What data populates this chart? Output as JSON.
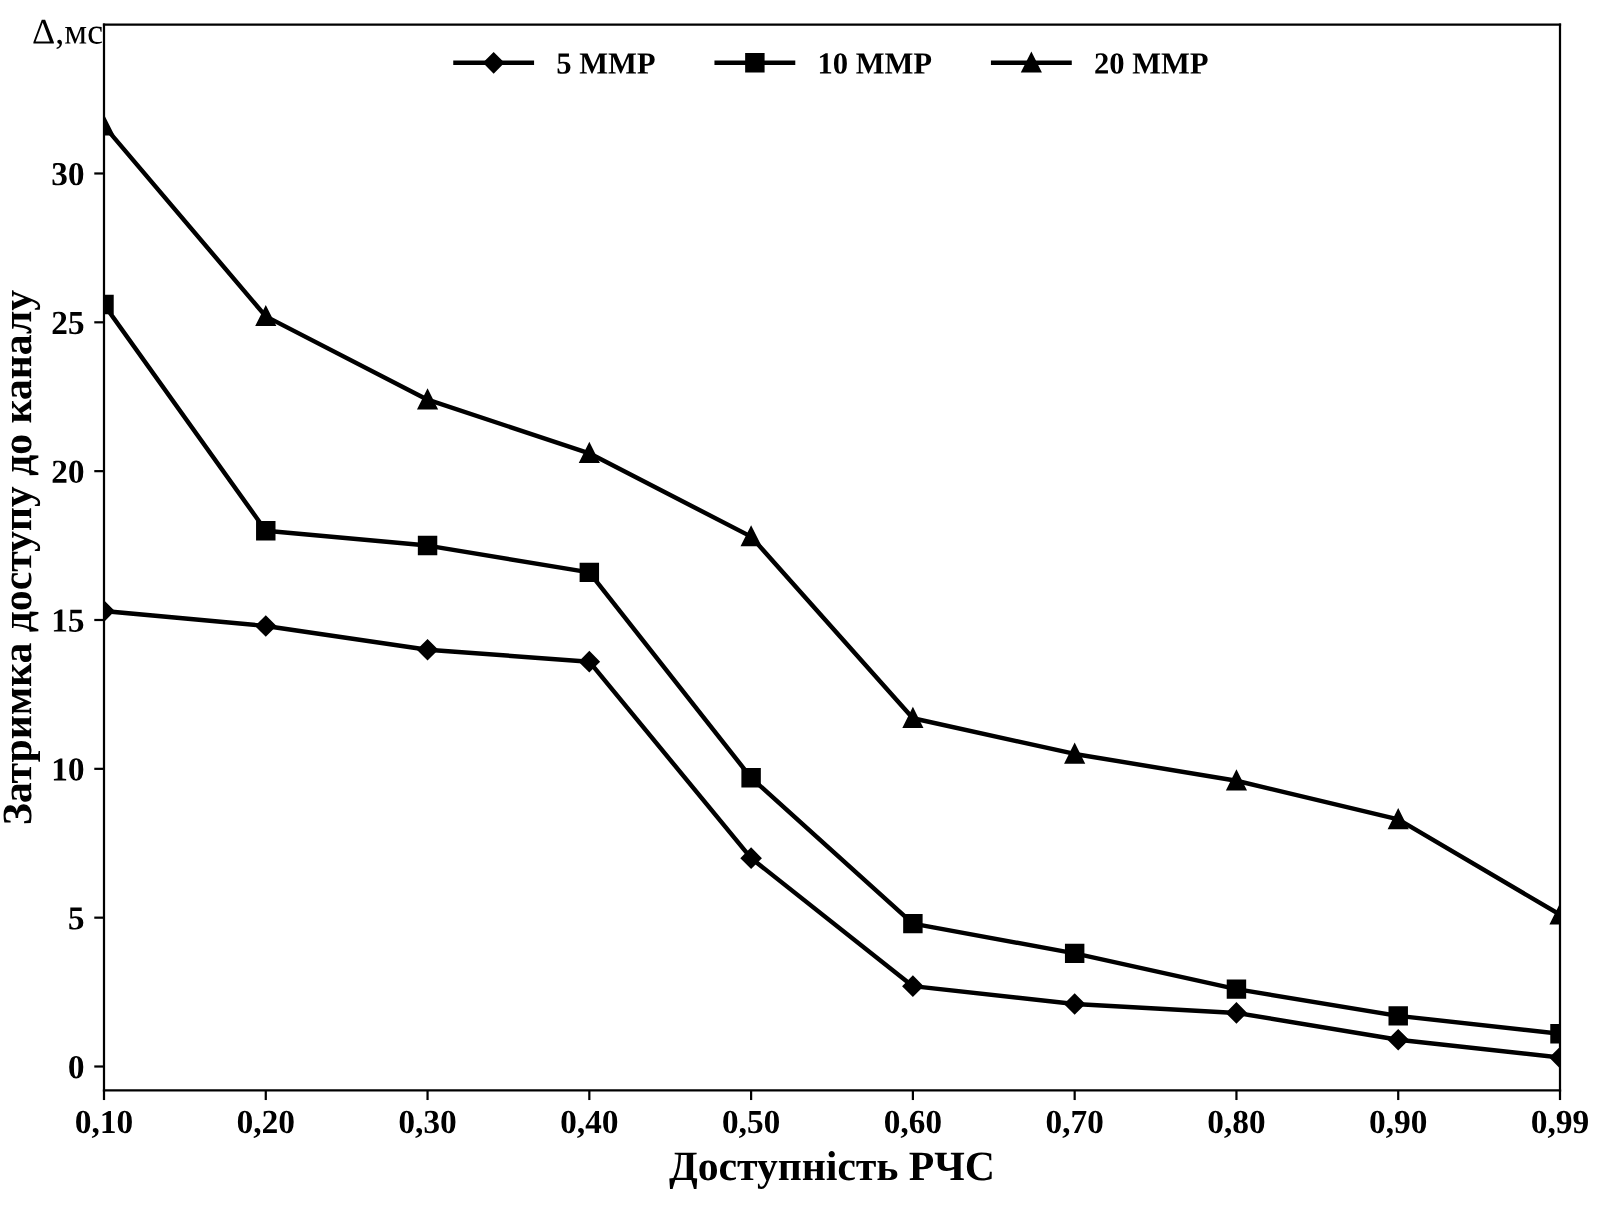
{
  "chart_data": {
    "type": "line",
    "xlabel": "Доступність РЧС",
    "ylabel": "Затримка доступу до каналу",
    "annotations": [
      "Δ,мс"
    ],
    "categories": [
      "0,10",
      "0,20",
      "0,30",
      "0,40",
      "0,50",
      "0,60",
      "0,70",
      "0,80",
      "0,90",
      "0,99"
    ],
    "series": [
      {
        "name": "5 MMP",
        "color": "#000000",
        "marker": "diamond",
        "values": [
          15.3,
          14.8,
          14.0,
          13.6,
          7.0,
          2.7,
          2.1,
          1.8,
          0.9,
          0.3
        ]
      },
      {
        "name": "10 MMP",
        "color": "#000000",
        "marker": "square",
        "values": [
          25.6,
          18.0,
          17.5,
          16.6,
          9.7,
          4.8,
          3.8,
          2.6,
          1.7,
          1.1
        ]
      },
      {
        "name": "20 MMP",
        "color": "#000000",
        "marker": "triangle",
        "values": [
          31.6,
          25.2,
          22.4,
          20.6,
          17.8,
          11.7,
          10.5,
          9.6,
          8.3,
          5.1
        ]
      }
    ],
    "ylim": [
      -0.8,
      35
    ],
    "yticks": [
      0,
      5,
      10,
      15,
      20,
      25,
      30
    ],
    "grid": false,
    "legend": "top",
    "line_style": "solid"
  }
}
